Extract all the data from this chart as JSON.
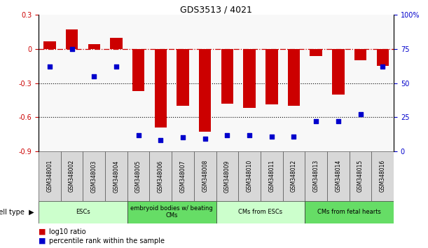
{
  "title": "GDS3513 / 4021",
  "samples": [
    "GSM348001",
    "GSM348002",
    "GSM348003",
    "GSM348004",
    "GSM348005",
    "GSM348006",
    "GSM348007",
    "GSM348008",
    "GSM348009",
    "GSM348010",
    "GSM348011",
    "GSM348012",
    "GSM348013",
    "GSM348014",
    "GSM348015",
    "GSM348016"
  ],
  "log10_ratio": [
    0.07,
    0.17,
    0.04,
    0.1,
    -0.37,
    -0.69,
    -0.5,
    -0.73,
    -0.48,
    -0.52,
    -0.49,
    -0.5,
    -0.06,
    -0.4,
    -0.1,
    -0.15
  ],
  "percentile_rank": [
    62,
    75,
    55,
    62,
    12,
    8,
    10,
    9,
    12,
    12,
    11,
    11,
    22,
    22,
    27,
    62
  ],
  "ylim_left": [
    -0.9,
    0.3
  ],
  "ylim_right": [
    0,
    100
  ],
  "yticks_left": [
    -0.9,
    -0.6,
    -0.3,
    0.0,
    0.3
  ],
  "yticks_right": [
    0,
    25,
    50,
    75,
    100
  ],
  "cell_type_groups": [
    {
      "label": "ESCs",
      "start": 0,
      "end": 3,
      "color": "#ccffcc"
    },
    {
      "label": "embryoid bodies w/ beating\nCMs",
      "start": 4,
      "end": 7,
      "color": "#66dd66"
    },
    {
      "label": "CMs from ESCs",
      "start": 8,
      "end": 11,
      "color": "#ccffcc"
    },
    {
      "label": "CMs from fetal hearts",
      "start": 12,
      "end": 15,
      "color": "#66dd66"
    }
  ],
  "bar_color": "#cc0000",
  "dot_color": "#0000cc",
  "zero_line_color": "#cc0000",
  "grid_color": "#000000",
  "bg_color": "#ffffff",
  "plot_bg_color": "#f8f8f8",
  "sample_box_color": "#d8d8d8",
  "cell_type_label": "cell type",
  "legend_ratio_label": "log10 ratio",
  "legend_percentile_label": "percentile rank within the sample",
  "bar_width": 0.55
}
